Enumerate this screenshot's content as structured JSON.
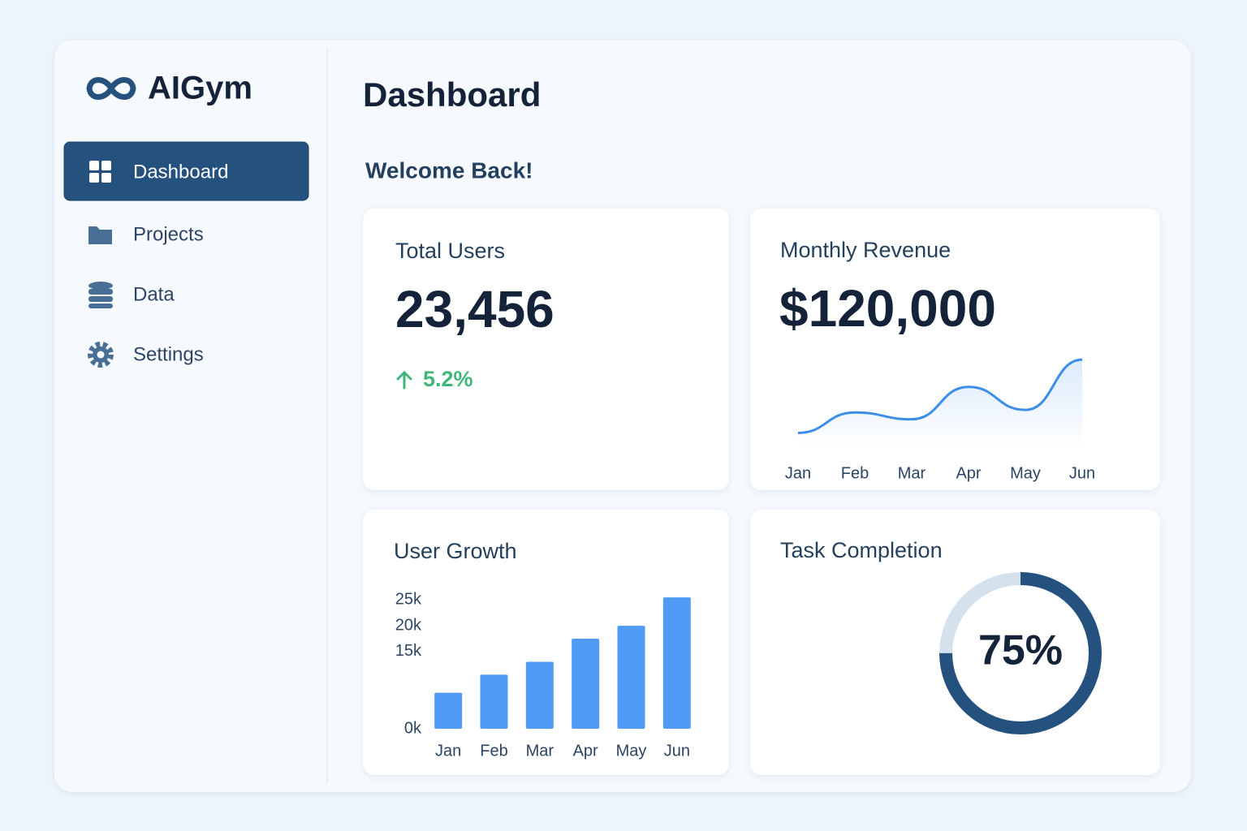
{
  "brand": "AIGym",
  "nav": [
    {
      "label": "Dashboard",
      "active": true
    },
    {
      "label": "Projects",
      "active": false
    },
    {
      "label": "Data",
      "active": false
    },
    {
      "label": "Settings",
      "active": false
    }
  ],
  "header": {
    "title": "Dashboard",
    "welcome": "Welcome Back!"
  },
  "stat": {
    "title": "Total Users",
    "value": "23,456",
    "change": "5.2%"
  },
  "revenue": {
    "value": "$120,000"
  },
  "chart_data": [
    {
      "type": "line",
      "title": "Monthly Revenue",
      "categories": [
        "Jan",
        "Feb",
        "Mar",
        "Apr",
        "May",
        "Jun"
      ],
      "values": [
        11,
        35,
        27,
        65,
        38,
        97
      ],
      "color": "#3d8ee8",
      "ylim": [
        0,
        100
      ]
    },
    {
      "type": "bar",
      "title": "User Growth",
      "categories": [
        "Jan",
        "Feb",
        "Mar",
        "Apr",
        "May",
        "Jun"
      ],
      "values": [
        7000,
        10500,
        13000,
        17500,
        20000,
        25500
      ],
      "color": "#4f9bf5",
      "ylim": [
        0,
        26000
      ],
      "yticks": [
        {
          "value": 0,
          "label": "0k"
        },
        {
          "value": 15000,
          "label": "15k"
        },
        {
          "value": 20000,
          "label": "20k"
        },
        {
          "value": 25000,
          "label": "25k"
        }
      ]
    },
    {
      "type": "donut",
      "title": "Task Completion",
      "values": [
        75
      ],
      "value_labels": [
        "75%"
      ],
      "total": 100,
      "color": "#24517e",
      "track_color": "#d5e2ee"
    }
  ]
}
